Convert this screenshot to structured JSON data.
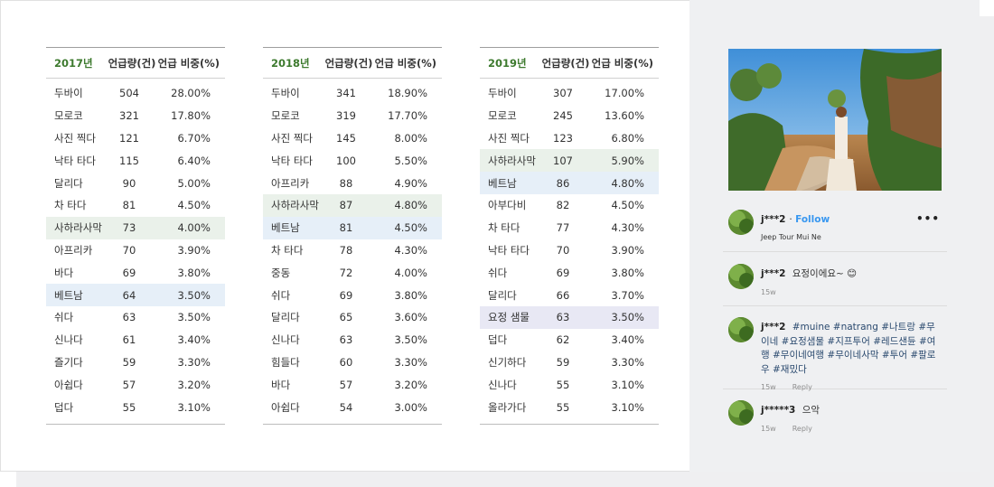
{
  "header": {
    "amount_label": "언급량(건)",
    "share_label": "언급 비중(%)"
  },
  "tables": [
    {
      "year": "2017년",
      "rows": [
        {
          "word": "두바이",
          "count": "504",
          "share": "28.00%",
          "hl": ""
        },
        {
          "word": "모로코",
          "count": "321",
          "share": "17.80%",
          "hl": ""
        },
        {
          "word": "사진 찍다",
          "count": "121",
          "share": "6.70%",
          "hl": ""
        },
        {
          "word": "낙타 타다",
          "count": "115",
          "share": "6.40%",
          "hl": ""
        },
        {
          "word": "달리다",
          "count": "90",
          "share": "5.00%",
          "hl": ""
        },
        {
          "word": "차 타다",
          "count": "81",
          "share": "4.50%",
          "hl": ""
        },
        {
          "word": "사하라사막",
          "count": "73",
          "share": "4.00%",
          "hl": "green"
        },
        {
          "word": "아프리카",
          "count": "70",
          "share": "3.90%",
          "hl": ""
        },
        {
          "word": "바다",
          "count": "69",
          "share": "3.80%",
          "hl": ""
        },
        {
          "word": "베트남",
          "count": "64",
          "share": "3.50%",
          "hl": "blue"
        },
        {
          "word": "쉬다",
          "count": "63",
          "share": "3.50%",
          "hl": ""
        },
        {
          "word": "신나다",
          "count": "61",
          "share": "3.40%",
          "hl": ""
        },
        {
          "word": "즐기다",
          "count": "59",
          "share": "3.30%",
          "hl": ""
        },
        {
          "word": "아쉽다",
          "count": "57",
          "share": "3.20%",
          "hl": ""
        },
        {
          "word": "덥다",
          "count": "55",
          "share": "3.10%",
          "hl": ""
        }
      ]
    },
    {
      "year": "2018년",
      "rows": [
        {
          "word": "두바이",
          "count": "341",
          "share": "18.90%",
          "hl": ""
        },
        {
          "word": "모로코",
          "count": "319",
          "share": "17.70%",
          "hl": ""
        },
        {
          "word": "사진 찍다",
          "count": "145",
          "share": "8.00%",
          "hl": ""
        },
        {
          "word": "낙타 타다",
          "count": "100",
          "share": "5.50%",
          "hl": ""
        },
        {
          "word": "아프리카",
          "count": "88",
          "share": "4.90%",
          "hl": ""
        },
        {
          "word": "사하라사막",
          "count": "87",
          "share": "4.80%",
          "hl": "green"
        },
        {
          "word": "베트남",
          "count": "81",
          "share": "4.50%",
          "hl": "blue"
        },
        {
          "word": "차 타다",
          "count": "78",
          "share": "4.30%",
          "hl": ""
        },
        {
          "word": "중동",
          "count": "72",
          "share": "4.00%",
          "hl": ""
        },
        {
          "word": "쉬다",
          "count": "69",
          "share": "3.80%",
          "hl": ""
        },
        {
          "word": "달리다",
          "count": "65",
          "share": "3.60%",
          "hl": ""
        },
        {
          "word": "신나다",
          "count": "63",
          "share": "3.50%",
          "hl": ""
        },
        {
          "word": "힘들다",
          "count": "60",
          "share": "3.30%",
          "hl": ""
        },
        {
          "word": "바다",
          "count": "57",
          "share": "3.20%",
          "hl": ""
        },
        {
          "word": "아쉽다",
          "count": "54",
          "share": "3.00%",
          "hl": ""
        }
      ]
    },
    {
      "year": "2019년",
      "rows": [
        {
          "word": "두바이",
          "count": "307",
          "share": "17.00%",
          "hl": ""
        },
        {
          "word": "모로코",
          "count": "245",
          "share": "13.60%",
          "hl": ""
        },
        {
          "word": "사진 찍다",
          "count": "123",
          "share": "6.80%",
          "hl": ""
        },
        {
          "word": "사하라사막",
          "count": "107",
          "share": "5.90%",
          "hl": "green"
        },
        {
          "word": "베트남",
          "count": "86",
          "share": "4.80%",
          "hl": "blue"
        },
        {
          "word": "아부다비",
          "count": "82",
          "share": "4.50%",
          "hl": ""
        },
        {
          "word": "차 타다",
          "count": "77",
          "share": "4.30%",
          "hl": ""
        },
        {
          "word": "낙타 타다",
          "count": "70",
          "share": "3.90%",
          "hl": ""
        },
        {
          "word": "쉬다",
          "count": "69",
          "share": "3.80%",
          "hl": ""
        },
        {
          "word": "달리다",
          "count": "66",
          "share": "3.70%",
          "hl": ""
        },
        {
          "word": "요정 샘물",
          "count": "63",
          "share": "3.50%",
          "hl": "purple"
        },
        {
          "word": "덥다",
          "count": "62",
          "share": "3.40%",
          "hl": ""
        },
        {
          "word": "신기하다",
          "count": "59",
          "share": "3.30%",
          "hl": ""
        },
        {
          "word": "신나다",
          "count": "55",
          "share": "3.10%",
          "hl": ""
        },
        {
          "word": "올라가다",
          "count": "55",
          "share": "3.10%",
          "hl": ""
        }
      ]
    }
  ],
  "post": {
    "author": "j***2",
    "follow": "Follow",
    "location": "Jeep Tour Mui Ne",
    "more_icon": "more-horizontal-icon",
    "comments": [
      {
        "user": "j***2",
        "text": "요정이에요~ 😊",
        "time": "15w",
        "reply": ""
      },
      {
        "user": "j***2",
        "text": "#muine #natrang #나트랑 #무이네 #요정샘물 #지프투어 #레드샌듄 #여행 #무이네여행 #무이네사막 #투어 #팔로우 #재밌다",
        "time": "15w",
        "reply": "Reply"
      },
      {
        "user": "j*****3",
        "text": "으악",
        "time": "15w",
        "reply": "Reply"
      }
    ]
  },
  "colors": {
    "year": "#3d7a2e",
    "hl_green": "#eaf1ea",
    "hl_blue": "#e6eff8",
    "hl_purple": "#e8e8f4",
    "follow": "#3897f0",
    "side_panel": "#eff0f2"
  }
}
